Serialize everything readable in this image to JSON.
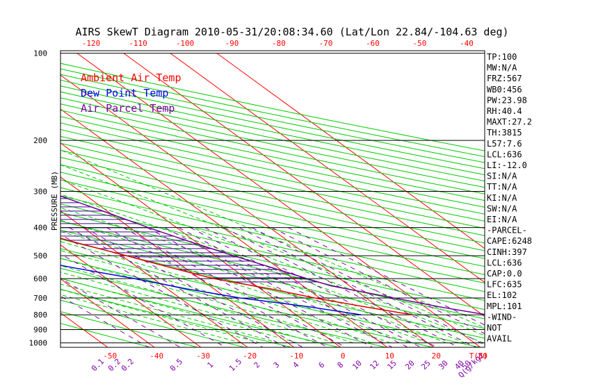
{
  "chart_data": {
    "type": "line",
    "title": "AIRS SkewT Diagram 2010-05-31/20:08:34.60 (Lat/Lon 22.84/-104.63 deg)",
    "ylabel": "PRESSURE (MB)",
    "y_scale": "log",
    "ylim": [
      1050,
      100
    ],
    "xlim_bottom": [
      -54,
      43
    ],
    "top_xlim": [
      -128,
      -38
    ],
    "y_ticks": [
      100,
      200,
      300,
      400,
      500,
      600,
      700,
      800,
      900,
      1000
    ],
    "bottom_ticks": [
      "-50",
      "-40",
      "-30",
      "-20",
      "-10",
      "0",
      "10",
      "20",
      "30",
      "T(C)"
    ],
    "top_ticks": [
      "-120",
      "-110",
      "-100",
      "-90",
      "-80",
      "-70",
      "-60",
      "-50",
      "-40"
    ],
    "mixing_ratio_labels": [
      "0.1",
      "0.2",
      "0.2",
      "0.5",
      "1",
      "1.5",
      "2",
      "3",
      "4",
      "6",
      "8",
      "10",
      "12",
      "15",
      "20",
      "25",
      "30",
      "40",
      "50",
      "Q(g/kg)"
    ],
    "grid": true,
    "legend_placement": "top-left",
    "legend": [
      {
        "label": "Ambient Air Temp",
        "color": "#ff0000"
      },
      {
        "label": "Dew Point Temp",
        "color": "#0000ff"
      },
      {
        "label": "Air Parcel Temp",
        "color": "#7f00a8"
      }
    ],
    "series": [
      {
        "name": "Ambient Air Temp",
        "color": "#e00000",
        "points": [
          {
            "p": 100,
            "t": -78
          },
          {
            "p": 120,
            "t": -75
          },
          {
            "p": 135,
            "t": -73
          },
          {
            "p": 150,
            "t": -71
          },
          {
            "p": 180,
            "t": -66
          },
          {
            "p": 200,
            "t": -62
          },
          {
            "p": 250,
            "t": -55
          },
          {
            "p": 300,
            "t": -48
          },
          {
            "p": 350,
            "t": -41
          },
          {
            "p": 400,
            "t": -33
          },
          {
            "p": 450,
            "t": -26
          },
          {
            "p": 500,
            "t": -19
          },
          {
            "p": 550,
            "t": -13
          },
          {
            "p": 600,
            "t": -7
          },
          {
            "p": 650,
            "t": 2
          },
          {
            "p": 700,
            "t": 9
          },
          {
            "p": 750,
            "t": 17
          },
          {
            "p": 800,
            "t": 25
          }
        ]
      },
      {
        "name": "Dew Point Temp",
        "color": "#0000e0",
        "points": [
          {
            "p": 100,
            "t": -92
          },
          {
            "p": 120,
            "t": -92
          },
          {
            "p": 150,
            "t": -92
          },
          {
            "p": 200,
            "t": -89
          },
          {
            "p": 250,
            "t": -86
          },
          {
            "p": 300,
            "t": -81
          },
          {
            "p": 350,
            "t": -77
          },
          {
            "p": 400,
            "t": -73
          },
          {
            "p": 450,
            "t": -57
          },
          {
            "p": 500,
            "t": -44
          },
          {
            "p": 550,
            "t": -34
          },
          {
            "p": 600,
            "t": -24
          },
          {
            "p": 650,
            "t": -16
          },
          {
            "p": 700,
            "t": -7
          },
          {
            "p": 750,
            "t": 5
          },
          {
            "p": 800,
            "t": 14
          }
        ]
      },
      {
        "name": "Air Parcel Temp",
        "color": "#6a0090",
        "points": [
          {
            "p": 100,
            "t": -78
          },
          {
            "p": 150,
            "t": -55
          },
          {
            "p": 200,
            "t": -38
          },
          {
            "p": 250,
            "t": -26
          },
          {
            "p": 300,
            "t": -17
          },
          {
            "p": 350,
            "t": -11
          },
          {
            "p": 400,
            "t": -6
          },
          {
            "p": 450,
            "t": -1
          },
          {
            "p": 500,
            "t": 4
          },
          {
            "p": 600,
            "t": 13
          },
          {
            "p": 635,
            "t": 16
          },
          {
            "p": 700,
            "t": 26
          },
          {
            "p": 750,
            "t": 33
          },
          {
            "p": 800,
            "t": 41
          }
        ]
      }
    ]
  },
  "indices": [
    "TP:100",
    "MW:N/A",
    "FRZ:567",
    "WB0:456",
    "PW:23.98",
    "RH:40.4",
    "MAXT:27.2",
    "TH:3815",
    "L57:7.6",
    "LCL:636",
    "LI:-12.0",
    "SI:N/A",
    "TT:N/A",
    "KI:N/A",
    "SW:N/A",
    "EI:N/A",
    "-PARCEL-",
    "CAPE:6248",
    "CINH:397",
    "LCL:636",
    "CAP:0.0",
    "LFC:635",
    "EL:102",
    "MPL:101",
    "-WIND-",
    "NOT",
    "AVAIL"
  ],
  "colors": {
    "background": "#ffffff",
    "isotherm": "#ff0000",
    "dry_adiabat": "#00cc00",
    "moist_adiabat": "#00cc00",
    "mixing_ratio": "#7f00a8",
    "isobar": "#000000",
    "cape_hatch": "#40008f"
  }
}
